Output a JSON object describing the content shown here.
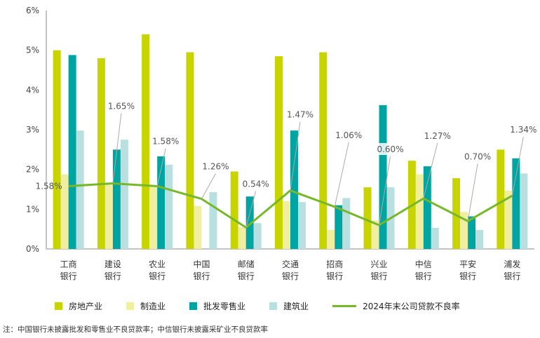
{
  "chart_data": {
    "type": "bar",
    "categories": [
      [
        "工商",
        "银行"
      ],
      [
        "建设",
        "银行"
      ],
      [
        "农业",
        "银行"
      ],
      [
        "中国",
        "银行"
      ],
      [
        "邮储",
        "银行"
      ],
      [
        "交通",
        "银行"
      ],
      [
        "招商",
        "银行"
      ],
      [
        "兴业",
        "银行"
      ],
      [
        "中信",
        "银行"
      ],
      [
        "平安",
        "银行"
      ],
      [
        "浦发",
        "银行"
      ]
    ],
    "yticks": [
      "0%",
      "1%",
      "2%",
      "3%",
      "4%",
      "5%",
      "6%"
    ],
    "ylim": [
      0,
      6
    ],
    "grid": "none",
    "legend_position": "bottom",
    "series": [
      {
        "name": "房地产业",
        "type": "bar",
        "color": "#c8d400",
        "values": [
          5.0,
          4.8,
          5.4,
          4.95,
          1.95,
          4.85,
          4.95,
          1.55,
          2.22,
          1.78,
          2.5
        ]
      },
      {
        "name": "制造业",
        "type": "bar",
        "color": "#f2eea0",
        "values": [
          1.88,
          1.62,
          1.6,
          1.08,
          0.55,
          1.2,
          0.48,
          0.72,
          1.88,
          0.93,
          1.47
        ]
      },
      {
        "name": "批发零售业",
        "type": "bar",
        "color": "#00a4a0",
        "values": [
          4.88,
          2.5,
          2.33,
          null,
          1.32,
          2.98,
          1.1,
          3.62,
          2.08,
          0.82,
          2.28
        ]
      },
      {
        "name": "建筑业",
        "type": "bar",
        "color": "#b8e0e0",
        "values": [
          2.98,
          2.75,
          2.12,
          1.43,
          0.65,
          1.18,
          1.28,
          1.55,
          0.53,
          0.48,
          1.9
        ]
      },
      {
        "name": "2024年末公司贷款不良率",
        "type": "line",
        "color": "#76b82a",
        "values": [
          1.58,
          1.65,
          1.58,
          1.26,
          0.54,
          1.47,
          1.06,
          0.6,
          1.27,
          0.7,
          1.34
        ]
      }
    ],
    "line_labels": [
      "1.58%",
      "1.65%",
      "1.58%",
      "1.26%",
      "0.54%",
      "1.47%",
      "1.06%",
      "0.60%",
      "1.27%",
      "0.70%",
      "1.34%"
    ]
  },
  "note": "注：中国银行未披露批发和零售业不良贷款率；中信银行未披露采矿业不良贷款率"
}
